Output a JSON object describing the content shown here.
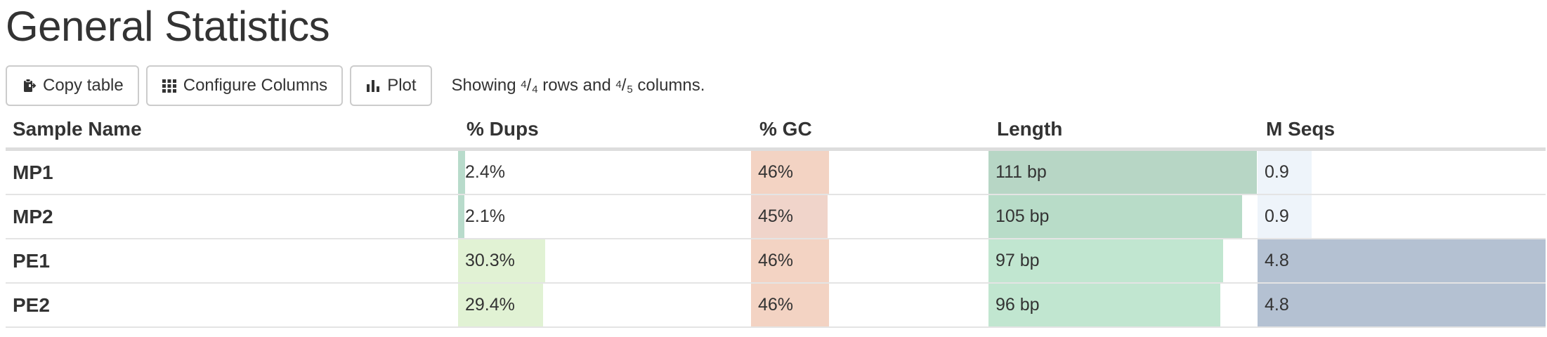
{
  "title": "General Statistics",
  "toolbar": {
    "copy_label": "Copy table",
    "configure_label": "Configure Columns",
    "plot_label": "Plot",
    "info_prefix": "Showing ",
    "rows_shown": "4",
    "rows_total": "4",
    "info_middle": " rows and ",
    "cols_shown": "4",
    "cols_total": "5",
    "info_suffix": " columns."
  },
  "table": {
    "headers": [
      "Sample Name",
      "% Dups",
      "% GC",
      "Length",
      "M Seqs"
    ],
    "rows": [
      {
        "name": "MP1",
        "dups": "2.4%",
        "gc": "46%",
        "length": "111 bp",
        "seqs": "0.9"
      },
      {
        "name": "MP2",
        "dups": "2.1%",
        "gc": "45%",
        "length": "105 bp",
        "seqs": "0.9"
      },
      {
        "name": "PE1",
        "dups": "30.3%",
        "gc": "46%",
        "length": "97 bp",
        "seqs": "4.8"
      },
      {
        "name": "PE2",
        "dups": "29.4%",
        "gc": "46%",
        "length": "96 bp",
        "seqs": "4.8"
      }
    ],
    "bar_fractions": {
      "dups": [
        0.024,
        0.021,
        0.303,
        0.294
      ],
      "gc": [
        0.46,
        0.45,
        0.46,
        0.46
      ],
      "length": [
        1.0,
        0.946,
        0.874,
        0.865
      ],
      "seqs": [
        0.1875,
        0.1875,
        1.0,
        1.0
      ]
    },
    "bar_colors": {
      "dups": [
        "#b8dbcb",
        "#b8dbcb",
        "#e1f2d4",
        "#e1f2d4"
      ],
      "gc": [
        "#f3d3c3",
        "#f0d4ca",
        "#f3d3c3",
        "#f3d3c3"
      ],
      "length": [
        "#b7d6c5",
        "#b8dcc8",
        "#c1e6d0",
        "#c1e6d0"
      ],
      "seqs": [
        "#eef4fa",
        "#eef4fa",
        "#b4c1d2",
        "#b4c1d2"
      ]
    }
  }
}
